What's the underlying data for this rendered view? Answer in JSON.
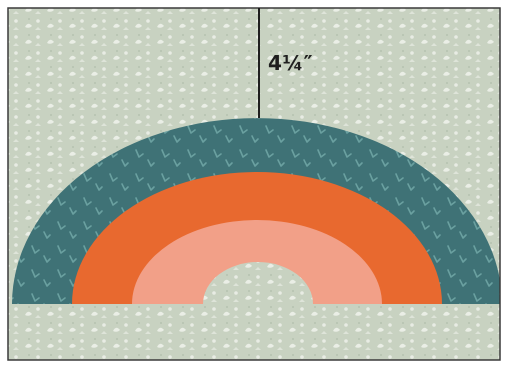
{
  "colors": {
    "background_fabric": "#c8d2c1",
    "background_motif": "#eef1ea",
    "outer_arc": "#3f7276",
    "outer_arc_motif": "#6aa0a0",
    "middle_arc": "#e8692f",
    "inner_arc": "#f2a088",
    "measure_line": "#1f1f1f",
    "frame_border": "#3a3a3a"
  },
  "measurement": {
    "label": "4¼″"
  }
}
